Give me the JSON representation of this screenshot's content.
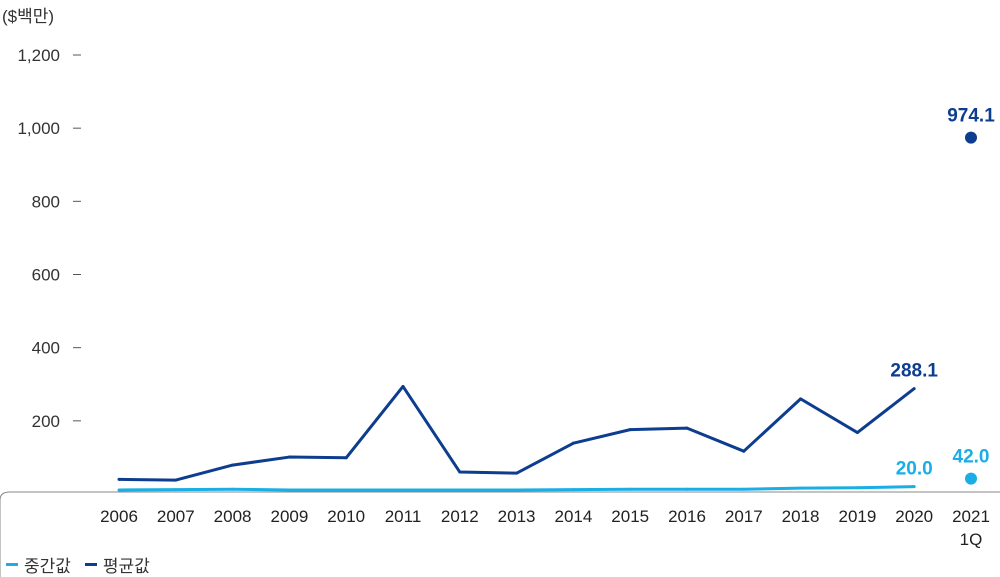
{
  "chart_data": {
    "type": "line",
    "unit_label": "($백만)",
    "categories": [
      "2006",
      "2007",
      "2008",
      "2009",
      "2010",
      "2011",
      "2012",
      "2013",
      "2014",
      "2015",
      "2016",
      "2017",
      "2018",
      "2019",
      "2020"
    ],
    "last_category": [
      "2021",
      "1Q"
    ],
    "y_ticks": [
      "1,200",
      "1,000",
      "800",
      "600",
      "400",
      "200"
    ],
    "ylim": [
      0,
      1200
    ],
    "series": [
      {
        "name": "중간값",
        "color": "#1aaee5",
        "values": [
          11,
          12,
          13,
          11,
          11,
          11,
          11,
          11,
          12,
          13,
          13,
          13,
          16,
          17,
          20
        ],
        "final_label": "20.0",
        "extra_point": 42.0,
        "extra_label": "42.0"
      },
      {
        "name": "평균값",
        "color": "#0d3d8f",
        "values": [
          40,
          38,
          79,
          101,
          99,
          294,
          60,
          57,
          139,
          176,
          180,
          117,
          260,
          168,
          288.1
        ],
        "final_label": "288.1",
        "extra_point": 974.1,
        "extra_label": "974.1"
      }
    ],
    "grid": false,
    "legend_position": "bottom-left"
  }
}
